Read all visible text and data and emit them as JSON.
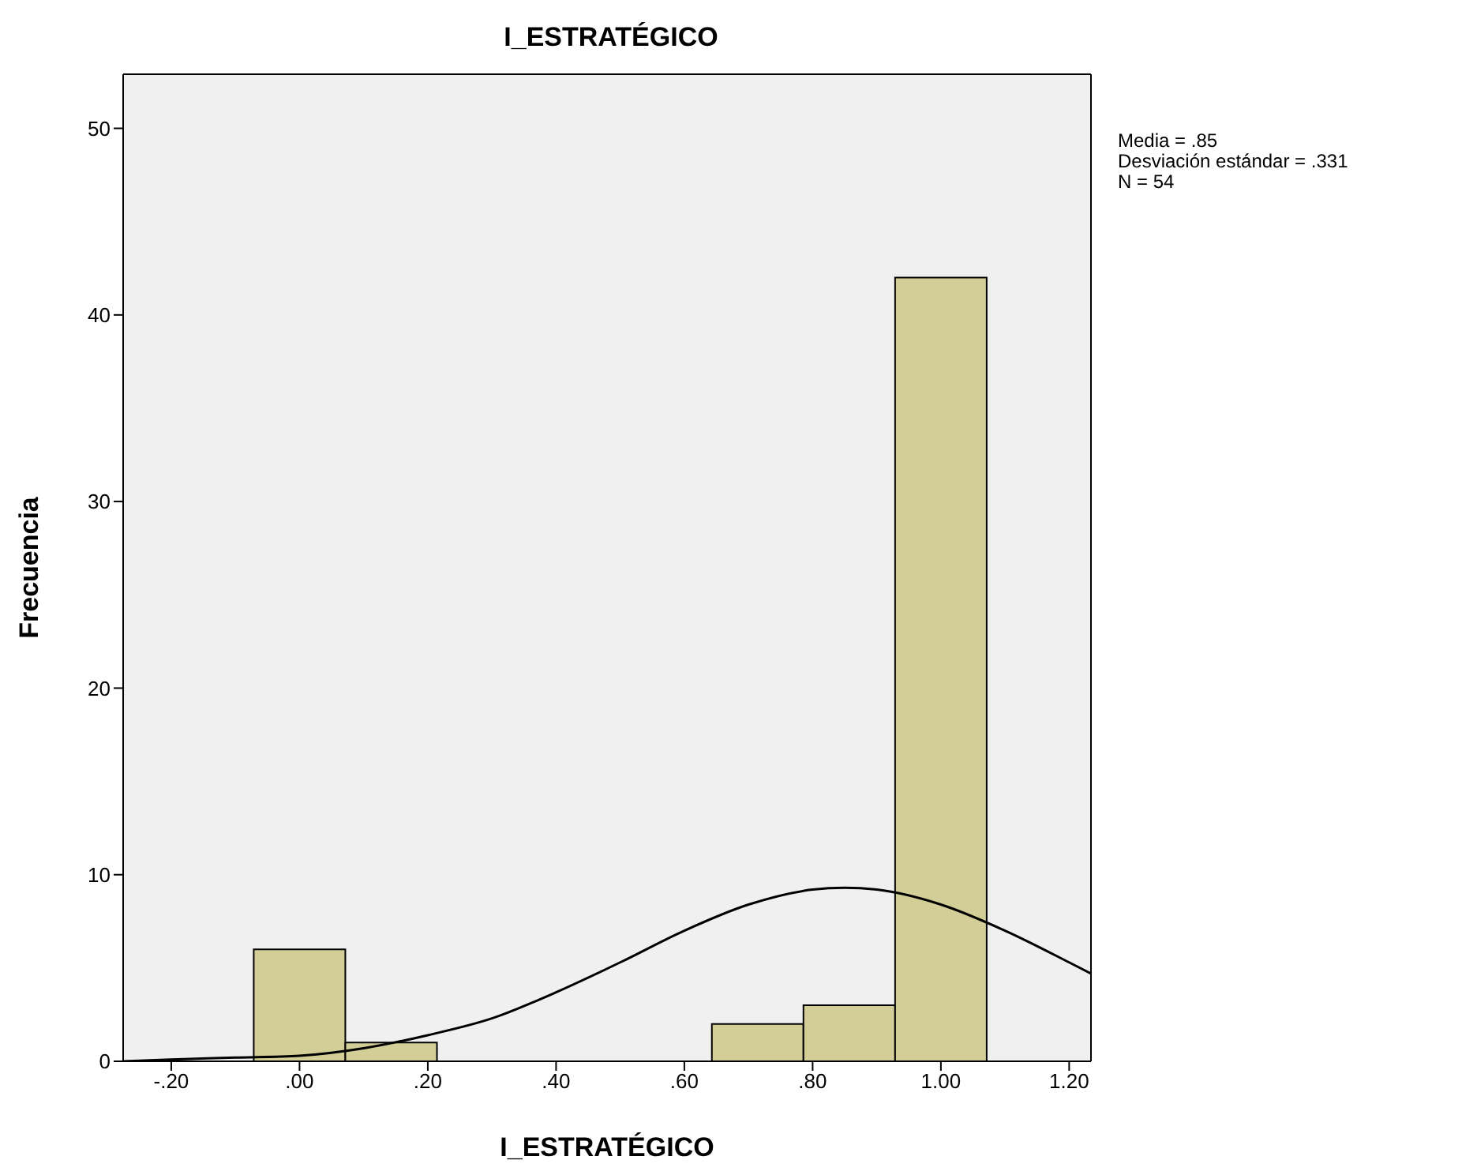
{
  "chart_data": {
    "type": "histogram",
    "title": "I_ESTRATÉGICO",
    "xlabel": "I_ESTRATÉGICO",
    "ylabel": "Frecuencia",
    "annotations": [
      "Media = .85",
      "Desviación estándar = .331",
      "N = 54"
    ],
    "bins": [
      -0.0714,
      0.0714,
      0.2143,
      0.3571,
      0.5,
      0.6429,
      0.7857,
      0.9286,
      1.0714
    ],
    "values": [
      6,
      1,
      0,
      0,
      0,
      2,
      3,
      42
    ],
    "color": "#d3ce97",
    "series": [
      {
        "type": "line",
        "color": "#000000",
        "x": [
          -0.275,
          -0.2,
          -0.1,
          0,
          0.1,
          0.2,
          0.3,
          0.4,
          0.5,
          0.6,
          0.7,
          0.8,
          0.85,
          0.9,
          1.0,
          1.1,
          1.2,
          1.234
        ],
        "values": [
          0,
          0.1,
          0.2,
          0.3,
          0.7,
          1.4,
          2.3,
          3.7,
          5.3,
          7,
          8.4,
          9.2,
          9.3,
          9.2,
          8.4,
          7,
          5.3,
          4.7
        ]
      }
    ],
    "xlim": [
      -0.275,
      1.234
    ],
    "xticks": [
      {
        "value": -0.2,
        "label": "-.20"
      },
      {
        "value": 0,
        "label": ".00"
      },
      {
        "value": 0.2,
        "label": ".20"
      },
      {
        "value": 0.4,
        "label": ".40"
      },
      {
        "value": 0.6,
        "label": ".60"
      },
      {
        "value": 0.8,
        "label": ".80"
      },
      {
        "value": 1,
        "label": "1.00"
      },
      {
        "value": 1.2,
        "label": "1.20"
      }
    ],
    "ylim": [
      0,
      52.9
    ],
    "yticks": [
      0,
      10,
      20,
      30,
      40,
      50
    ],
    "grid": false
  }
}
